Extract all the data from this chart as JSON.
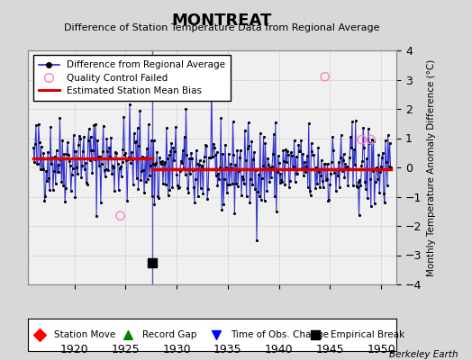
{
  "title": "MONTREAT",
  "subtitle": "Difference of Station Temperature Data from Regional Average",
  "ylabel_right": "Monthly Temperature Anomaly Difference (°C)",
  "xlim": [
    1915.5,
    1951.5
  ],
  "ylim": [
    -4,
    4
  ],
  "yticks": [
    -4,
    -3,
    -2,
    -1,
    0,
    1,
    2,
    3,
    4
  ],
  "xticks": [
    1920,
    1925,
    1930,
    1935,
    1940,
    1945,
    1950
  ],
  "fig_bg_color": "#d8d8d8",
  "plot_bg_color": "#f0f0f0",
  "line_color": "#2020cc",
  "dot_color": "#000000",
  "bias_color": "#dd0000",
  "qc_color": "#ff80c0",
  "bias_segment1": [
    1916.0,
    1927.58,
    0.3
  ],
  "bias_segment2": [
    1927.58,
    1950.92,
    -0.05
  ],
  "break_year": 1927.58,
  "empirical_break_x": 1927.58,
  "empirical_break_y": -3.25,
  "qc_failed_points": [
    [
      1924.5,
      -1.65
    ],
    [
      1944.5,
      3.1
    ],
    [
      1948.1,
      0.95
    ],
    [
      1949.0,
      0.95
    ]
  ],
  "watermark": "Berkeley Earth",
  "seed": 42
}
